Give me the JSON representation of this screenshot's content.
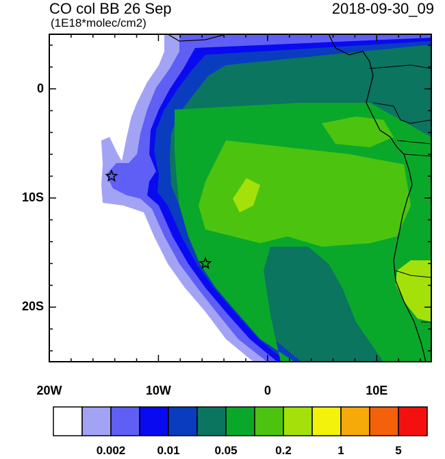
{
  "header": {
    "title_left": "CO col BB 26 Sep",
    "title_right": "2018-09-30_09",
    "units": "(1E18*molec/cm2)"
  },
  "map": {
    "lon_range": [
      -20,
      15
    ],
    "lat_range": [
      -25,
      5
    ],
    "lat_ticks": [
      {
        "value": 0,
        "label": "0"
      },
      {
        "value": -10,
        "label": "10S"
      },
      {
        "value": -20,
        "label": "20S"
      }
    ],
    "lon_ticks": [
      {
        "value": -20,
        "label": "20W"
      },
      {
        "value": -10,
        "label": "10W"
      },
      {
        "value": 0,
        "label": "0"
      },
      {
        "value": 10,
        "label": "10E"
      }
    ],
    "markers": [
      {
        "name": "star-marker-ascension",
        "lon": -14.3,
        "lat": -8.0
      },
      {
        "name": "star-marker-st-helena",
        "lon": -5.7,
        "lat": -16.0
      }
    ]
  },
  "colorbar": {
    "colors": [
      "#ffffff",
      "#a3a3f5",
      "#5f5ff5",
      "#0a0af0",
      "#0a3cc0",
      "#0b7560",
      "#0aa82a",
      "#4cc40f",
      "#a4e10a",
      "#f2f20a",
      "#f5aa0a",
      "#f5600a",
      "#f51010"
    ],
    "labels": [
      "0.002",
      "0.01",
      "0.05",
      "0.2",
      "1",
      "5"
    ]
  }
}
